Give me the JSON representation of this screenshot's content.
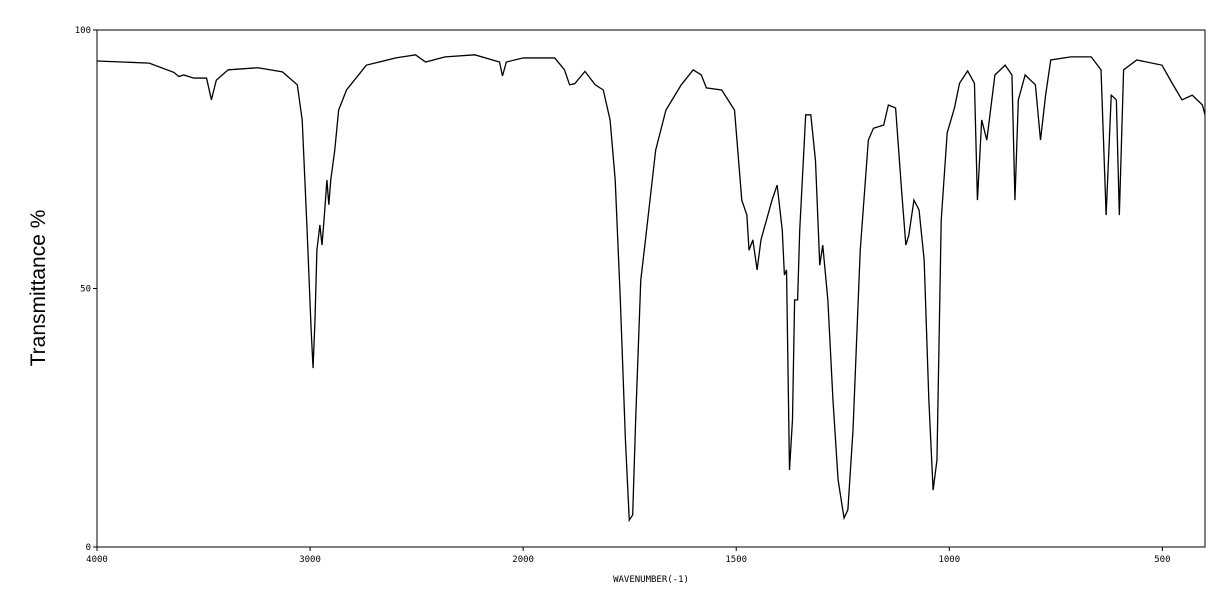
{
  "chart_data": {
    "type": "line",
    "y_label": "Transmittance %",
    "x_label": "WAVENUMBER(-1)",
    "xlim": [
      4000,
      400
    ],
    "ylim": [
      0,
      100
    ],
    "x_scale_change": 2000,
    "x_scale_ratio": 2,
    "xticks": [
      4000,
      3000,
      2000,
      1500,
      1000,
      500
    ],
    "yticks": [
      0,
      50,
      100
    ],
    "series": [
      {
        "color": "#000000",
        "x": [
          4000,
          3755,
          3639,
          3616,
          3593,
          3546,
          3486,
          3463,
          3440,
          3384,
          3245,
          3130,
          3060,
          3037,
          3014,
          2995,
          2986,
          2977,
          2968,
          2954,
          2944,
          2931,
          2921,
          2912,
          2903,
          2884,
          2866,
          2829,
          2736,
          2597,
          2505,
          2458,
          2366,
          2227,
          2111,
          2097,
          2079,
          2000,
          1926,
          1903,
          1891,
          1879,
          1855,
          1831,
          1812,
          1796,
          1784,
          1772,
          1760,
          1751,
          1743,
          1736,
          1724,
          1713,
          1689,
          1665,
          1629,
          1601,
          1582,
          1570,
          1534,
          1504,
          1487,
          1475,
          1470,
          1461,
          1451,
          1442,
          1416,
          1404,
          1392,
          1387,
          1382,
          1375,
          1368,
          1363,
          1356,
          1351,
          1337,
          1325,
          1314,
          1304,
          1297,
          1285,
          1273,
          1261,
          1247,
          1238,
          1226,
          1209,
          1190,
          1178,
          1154,
          1143,
          1126,
          1112,
          1102,
          1095,
          1083,
          1071,
          1059,
          1048,
          1038,
          1029,
          1019,
          1005,
          988,
          976,
          957,
          941,
          934,
          924,
          912,
          893,
          869,
          853,
          846,
          838,
          822,
          798,
          786,
          774,
          762,
          715,
          667,
          644,
          632,
          620,
          608,
          601,
          591,
          560,
          501,
          477,
          454,
          430,
          406,
          400
        ],
        "values": [
          94,
          93.6,
          91.8,
          91,
          91.3,
          90.7,
          90.7,
          86.5,
          90.3,
          92.3,
          92.7,
          91.9,
          89.4,
          82.6,
          61.3,
          42,
          34.6,
          43.9,
          57.4,
          62.3,
          58.4,
          65.2,
          71,
          66.2,
          71,
          76.8,
          84.5,
          88.4,
          93.2,
          94.6,
          95.2,
          93.8,
          94.8,
          95.2,
          93.8,
          91.1,
          93.8,
          94.6,
          94.6,
          92.3,
          89.4,
          89.6,
          92,
          89.4,
          88.4,
          82.6,
          71,
          47.8,
          20.7,
          5.2,
          6.2,
          24.6,
          51.6,
          59.4,
          76.8,
          84.5,
          89.4,
          92.3,
          91.3,
          88.8,
          88.4,
          84.5,
          67.1,
          64.2,
          57.4,
          59.4,
          53.6,
          59.4,
          67.1,
          70,
          61.3,
          52.6,
          53.6,
          14.9,
          24.6,
          47.8,
          47.8,
          61.3,
          83.6,
          83.6,
          74.7,
          54.5,
          58.4,
          47.8,
          28.4,
          13,
          5.6,
          7.2,
          22.6,
          57.4,
          78.7,
          81,
          81.6,
          85.5,
          84.9,
          69,
          58.4,
          60.3,
          67.1,
          65.2,
          55.5,
          28.4,
          11,
          16.8,
          63.2,
          80.1,
          84.9,
          89.7,
          92.1,
          89.7,
          67.1,
          82.6,
          78.7,
          91.3,
          93.2,
          91.3,
          67.1,
          86.5,
          91.3,
          89.4,
          78.7,
          87.4,
          94.2,
          94.8,
          94.8,
          92.3,
          64.2,
          87.4,
          86.5,
          64.2,
          92.3,
          94.2,
          93.2,
          89.7,
          86.5,
          87.4,
          85.5,
          83.6
        ]
      }
    ]
  }
}
